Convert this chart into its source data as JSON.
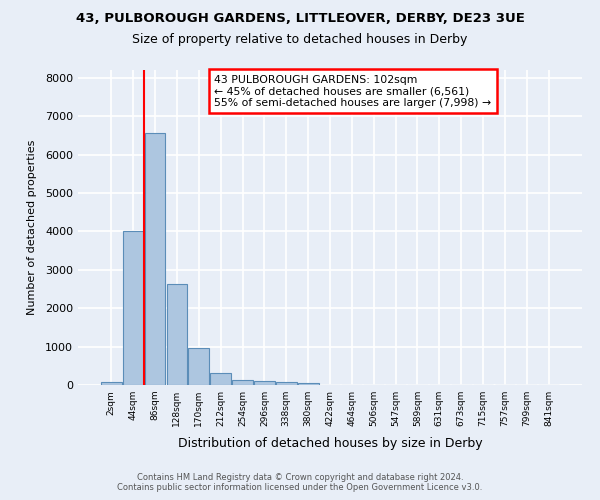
{
  "title1": "43, PULBOROUGH GARDENS, LITTLEOVER, DERBY, DE23 3UE",
  "title2": "Size of property relative to detached houses in Derby",
  "xlabel": "Distribution of detached houses by size in Derby",
  "ylabel": "Number of detached properties",
  "footnote": "Contains HM Land Registry data © Crown copyright and database right 2024.\nContains public sector information licensed under the Open Government Licence v3.0.",
  "bin_labels": [
    "2sqm",
    "44sqm",
    "86sqm",
    "128sqm",
    "170sqm",
    "212sqm",
    "254sqm",
    "296sqm",
    "338sqm",
    "380sqm",
    "422sqm",
    "464sqm",
    "506sqm",
    "547sqm",
    "589sqm",
    "631sqm",
    "673sqm",
    "715sqm",
    "757sqm",
    "799sqm",
    "841sqm"
  ],
  "bar_values": [
    80,
    4000,
    6560,
    2620,
    960,
    320,
    130,
    110,
    70,
    55,
    0,
    0,
    0,
    0,
    0,
    0,
    0,
    0,
    0,
    0,
    0
  ],
  "bar_color": "#adc6e0",
  "bar_edge_color": "#5b8db8",
  "red_line_x": 1.5,
  "annotation_text": "43 PULBOROUGH GARDENS: 102sqm\n← 45% of detached houses are smaller (6,561)\n55% of semi-detached houses are larger (7,998) →",
  "annotation_box_color": "white",
  "annotation_box_edge": "red",
  "ylim": [
    0,
    8200
  ],
  "yticks": [
    0,
    1000,
    2000,
    3000,
    4000,
    5000,
    6000,
    7000,
    8000
  ],
  "bg_color": "#e8eef7",
  "grid_color": "white"
}
